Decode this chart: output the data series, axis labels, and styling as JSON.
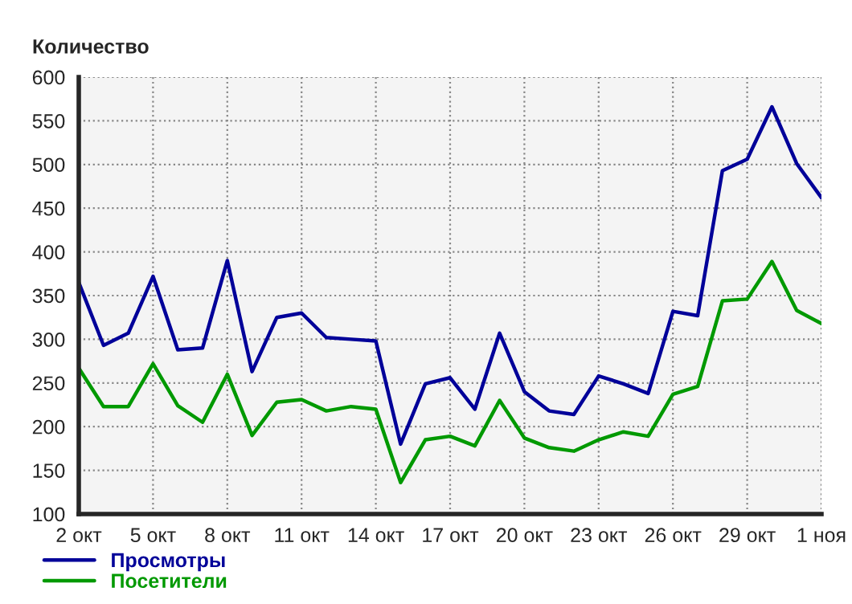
{
  "chart_data": {
    "type": "line",
    "ylabel": "Количество",
    "categories": [
      "2 окт",
      null,
      null,
      "5 окт",
      null,
      null,
      "8 окт",
      null,
      null,
      "11 окт",
      null,
      null,
      "14 окт",
      null,
      null,
      "17 окт",
      null,
      null,
      "20 окт",
      null,
      null,
      "23 окт",
      null,
      null,
      "26 окт",
      null,
      null,
      "29 окт",
      null,
      null,
      "1 ноя"
    ],
    "series": [
      {
        "name": "Просмотры",
        "color": "#000099",
        "values": [
          365,
          293,
          307,
          372,
          288,
          290,
          390,
          263,
          325,
          330,
          302,
          300,
          298,
          180,
          249,
          256,
          220,
          307,
          240,
          218,
          214,
          258,
          249,
          238,
          332,
          327,
          493,
          506,
          566,
          501,
          462
        ]
      },
      {
        "name": "Посетители",
        "color": "#009900",
        "values": [
          267,
          223,
          223,
          272,
          224,
          205,
          260,
          190,
          228,
          231,
          218,
          223,
          220,
          136,
          185,
          189,
          178,
          230,
          187,
          176,
          172,
          185,
          194,
          189,
          237,
          246,
          344,
          346,
          389,
          333,
          318
        ]
      }
    ],
    "ylim": [
      100,
      600
    ],
    "yticks": [
      100,
      150,
      200,
      250,
      300,
      350,
      400,
      450,
      500,
      550,
      600
    ],
    "grid": true,
    "legend": "bottom",
    "marker": "none",
    "line_style": "solid"
  }
}
